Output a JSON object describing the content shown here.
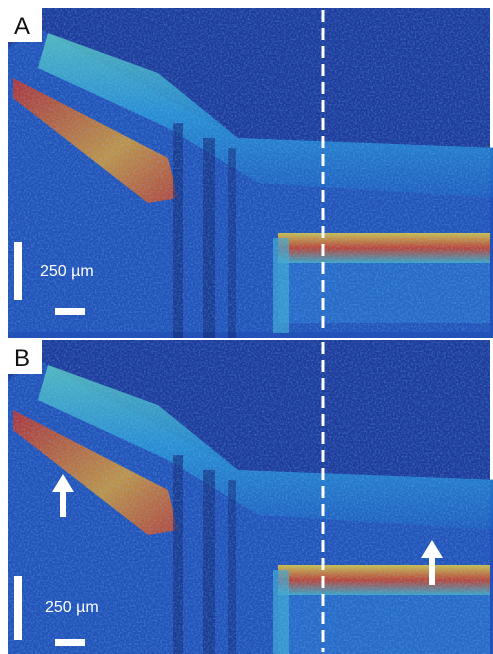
{
  "panels": [
    {
      "label": "A",
      "scale_label": "250 µm"
    },
    {
      "label": "B",
      "scale_label": "250 µm"
    }
  ]
}
